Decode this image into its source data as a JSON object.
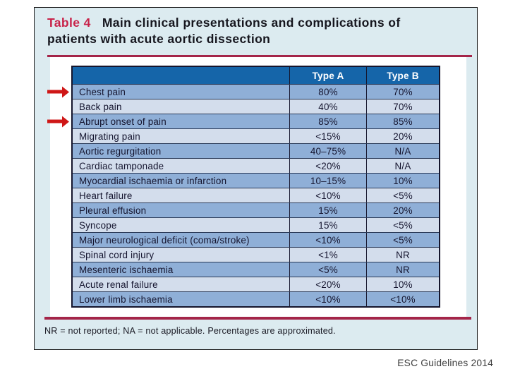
{
  "slide": {
    "title_label": "Table 4",
    "title_text": "Main clinical presentations and complications of patients with acute aortic dissection",
    "footnote": "NR = not reported; NA = not applicable. Percentages are approximated.",
    "credit": "ESC Guidelines 2014"
  },
  "table": {
    "columns": [
      "",
      "Type A",
      "Type B"
    ],
    "rows": [
      {
        "label": "Chest pain",
        "type_a": "80%",
        "type_b": "70%",
        "arrow": true
      },
      {
        "label": "Back pain",
        "type_a": "40%",
        "type_b": "70%",
        "arrow": false
      },
      {
        "label": "Abrupt onset of pain",
        "type_a": "85%",
        "type_b": "85%",
        "arrow": true
      },
      {
        "label": "Migrating pain",
        "type_a": "<15%",
        "type_b": "20%",
        "arrow": false
      },
      {
        "label": "Aortic regurgitation",
        "type_a": "40–75%",
        "type_b": "N/A",
        "arrow": false
      },
      {
        "label": "Cardiac tamponade",
        "type_a": "<20%",
        "type_b": "N/A",
        "arrow": false
      },
      {
        "label": "Myocardial ischaemia or infarction",
        "type_a": "10–15%",
        "type_b": "10%",
        "arrow": false
      },
      {
        "label": "Heart failure",
        "type_a": "<10%",
        "type_b": "<5%",
        "arrow": false
      },
      {
        "label": "Pleural effusion",
        "type_a": "15%",
        "type_b": "20%",
        "arrow": false
      },
      {
        "label": "Syncope",
        "type_a": "15%",
        "type_b": "<5%",
        "arrow": false
      },
      {
        "label": "Major neurological deficit (coma/stroke)",
        "type_a": "<10%",
        "type_b": "<5%",
        "arrow": false
      },
      {
        "label": "Spinal cord injury",
        "type_a": "<1%",
        "type_b": "NR",
        "arrow": false
      },
      {
        "label": "Mesenteric ischaemia",
        "type_a": "<5%",
        "type_b": "NR",
        "arrow": false
      },
      {
        "label": "Acute renal failure",
        "type_a": "<20%",
        "type_b": "10%",
        "arrow": false
      },
      {
        "label": "Lower limb ischaemia",
        "type_a": "<10%",
        "type_b": "<10%",
        "arrow": false
      }
    ]
  },
  "colors": {
    "header_blue": "#1565a9",
    "row_dark_blue": "#8fafd7",
    "row_light_blue": "#d3ddec",
    "panel_blue": "#dcebf0",
    "rule_crimson": "#a42549",
    "title_red": "#c8234a",
    "arrow_red": "#cf1717"
  }
}
